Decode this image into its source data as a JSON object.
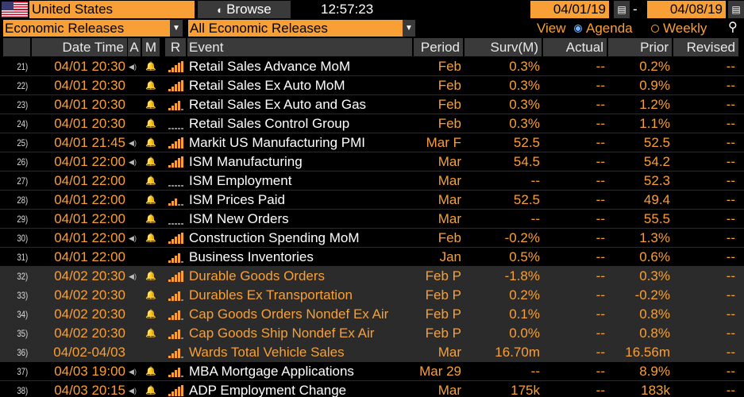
{
  "topbar": {
    "country": "United States",
    "browse_label": "Browse",
    "time": "12:57:23",
    "start_date": "04/01/19",
    "end_date": "04/08/19",
    "dash": "-"
  },
  "filters": {
    "category": "Economic Releases",
    "release_type": "All Economic Releases",
    "view_label": "View",
    "agenda_label": "Agenda",
    "weekly_label": "Weekly",
    "selected_view": "Agenda"
  },
  "columns": {
    "datetime": "Date Time",
    "alert": "A",
    "mine": "M",
    "relevance": "R",
    "event": "Event",
    "period": "Period",
    "survey": "Surv(M)",
    "actual": "Actual",
    "prior": "Prior",
    "revised": "Revised"
  },
  "colors": {
    "accent": "#f8a036",
    "header_bg": "#3a3a3a",
    "highlight_row": "#2b2b2b",
    "radio_selected": "#6cb4ff"
  },
  "rows": [
    {
      "n": "21)",
      "dt": "04/01 20:30",
      "speaker": true,
      "bell": true,
      "rel": 5,
      "event": "Retail Sales Advance MoM",
      "period": "Feb",
      "surv": "0.3%",
      "actual": "--",
      "prior": "0.2%",
      "revised": "--",
      "hl": false
    },
    {
      "n": "22)",
      "dt": "04/01 20:30",
      "speaker": false,
      "bell": true,
      "rel": 5,
      "event": "Retail Sales Ex Auto MoM",
      "period": "Feb",
      "surv": "0.3%",
      "actual": "--",
      "prior": "0.9%",
      "revised": "--",
      "hl": false
    },
    {
      "n": "23)",
      "dt": "04/01 20:30",
      "speaker": false,
      "bell": true,
      "rel": 4,
      "event": "Retail Sales Ex Auto and Gas",
      "period": "Feb",
      "surv": "0.3%",
      "actual": "--",
      "prior": "1.2%",
      "revised": "--",
      "hl": false
    },
    {
      "n": "24)",
      "dt": "04/01 20:30",
      "speaker": false,
      "bell": true,
      "rel": 0,
      "event": "Retail Sales Control Group",
      "period": "Feb",
      "surv": "0.3%",
      "actual": "--",
      "prior": "1.1%",
      "revised": "--",
      "hl": false
    },
    {
      "n": "25)",
      "dt": "04/01 21:45",
      "speaker": true,
      "bell": true,
      "rel": 5,
      "event": "Markit US Manufacturing PMI",
      "period": "Mar F",
      "surv": "52.5",
      "actual": "--",
      "prior": "52.5",
      "revised": "--",
      "hl": false
    },
    {
      "n": "26)",
      "dt": "04/01 22:00",
      "speaker": true,
      "bell": true,
      "rel": 5,
      "event": "ISM Manufacturing",
      "period": "Mar",
      "surv": "54.5",
      "actual": "--",
      "prior": "54.2",
      "revised": "--",
      "hl": false
    },
    {
      "n": "27)",
      "dt": "04/01 22:00",
      "speaker": false,
      "bell": true,
      "rel": 0,
      "event": "ISM Employment",
      "period": "Mar",
      "surv": "--",
      "actual": "--",
      "prior": "52.3",
      "revised": "--",
      "hl": false
    },
    {
      "n": "28)",
      "dt": "04/01 22:00",
      "speaker": false,
      "bell": true,
      "rel": 3,
      "event": "ISM Prices Paid",
      "period": "Mar",
      "surv": "52.5",
      "actual": "--",
      "prior": "49.4",
      "revised": "--",
      "hl": false
    },
    {
      "n": "29)",
      "dt": "04/01 22:00",
      "speaker": false,
      "bell": true,
      "rel": 0,
      "event": "ISM New Orders",
      "period": "Mar",
      "surv": "--",
      "actual": "--",
      "prior": "55.5",
      "revised": "--",
      "hl": false
    },
    {
      "n": "30)",
      "dt": "04/01 22:00",
      "speaker": true,
      "bell": true,
      "rel": 5,
      "event": "Construction Spending MoM",
      "period": "Feb",
      "surv": "-0.2%",
      "actual": "--",
      "prior": "1.3%",
      "revised": "--",
      "hl": false
    },
    {
      "n": "31)",
      "dt": "04/01 22:00",
      "speaker": false,
      "bell": false,
      "rel": 4,
      "event": "Business Inventories",
      "period": "Jan",
      "surv": "0.5%",
      "actual": "--",
      "prior": "0.6%",
      "revised": "--",
      "hl": false
    },
    {
      "n": "32)",
      "dt": "04/02 20:30",
      "speaker": true,
      "bell": true,
      "rel": 5,
      "event": "Durable Goods Orders",
      "period": "Feb P",
      "surv": "-1.8%",
      "actual": "--",
      "prior": "0.3%",
      "revised": "--",
      "hl": true
    },
    {
      "n": "33)",
      "dt": "04/02 20:30",
      "speaker": false,
      "bell": true,
      "rel": 4,
      "event": "Durables Ex Transportation",
      "period": "Feb P",
      "surv": "0.2%",
      "actual": "--",
      "prior": "-0.2%",
      "revised": "--",
      "hl": true
    },
    {
      "n": "34)",
      "dt": "04/02 20:30",
      "speaker": false,
      "bell": true,
      "rel": 4,
      "event": "Cap Goods Orders Nondef Ex Air",
      "period": "Feb P",
      "surv": "0.1%",
      "actual": "--",
      "prior": "0.8%",
      "revised": "--",
      "hl": true
    },
    {
      "n": "35)",
      "dt": "04/02 20:30",
      "speaker": false,
      "bell": true,
      "rel": 4,
      "event": "Cap Goods Ship Nondef Ex Air",
      "period": "Feb P",
      "surv": "0.0%",
      "actual": "--",
      "prior": "0.8%",
      "revised": "--",
      "hl": true
    },
    {
      "n": "36)",
      "dt": "04/02-04/03",
      "speaker": false,
      "bell": false,
      "rel": 4,
      "event": "Wards Total Vehicle Sales",
      "period": "Mar",
      "surv": "16.70m",
      "actual": "--",
      "prior": "16.56m",
      "revised": "--",
      "hl": true
    },
    {
      "n": "37)",
      "dt": "04/03 19:00",
      "speaker": true,
      "bell": true,
      "rel": 4,
      "event": "MBA Mortgage Applications",
      "period": "Mar 29",
      "surv": "--",
      "actual": "--",
      "prior": "8.9%",
      "revised": "--",
      "hl": false
    },
    {
      "n": "38)",
      "dt": "04/03 20:15",
      "speaker": true,
      "bell": true,
      "rel": 5,
      "event": "ADP Employment Change",
      "period": "Mar",
      "surv": "175k",
      "actual": "--",
      "prior": "183k",
      "revised": "--",
      "hl": false
    }
  ]
}
